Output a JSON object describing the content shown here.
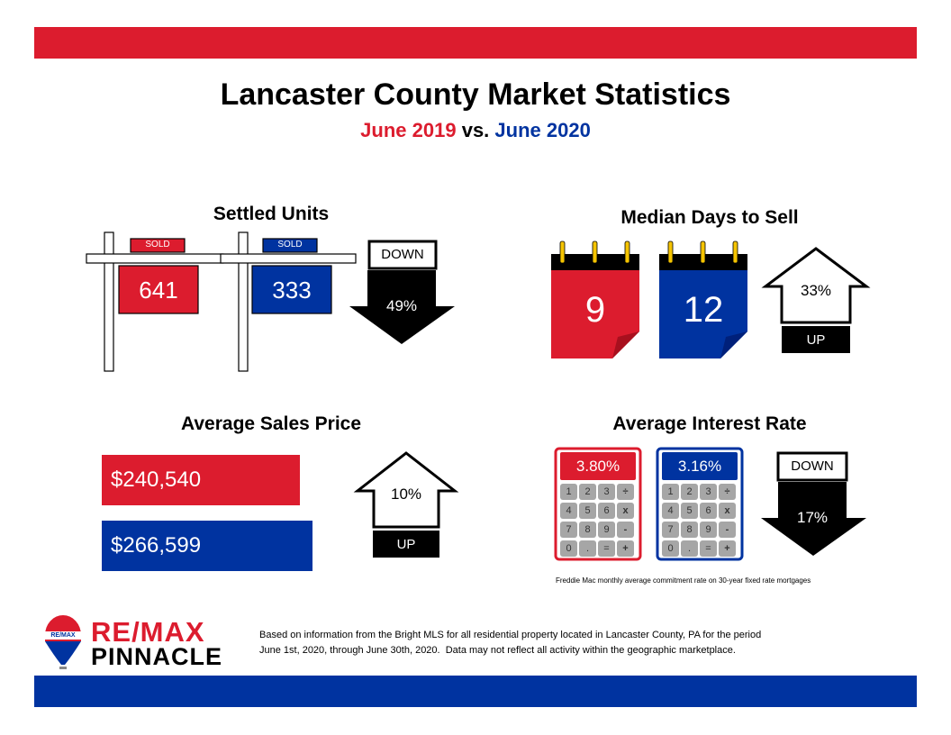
{
  "header": {
    "title": "Lancaster County Market Statistics",
    "year_a": "June 2019",
    "vs": "vs.",
    "year_b": "June 2020"
  },
  "colors": {
    "red": "#dc1c2e",
    "blue": "#0033a0",
    "black": "#000000",
    "yellow": "#f5c400"
  },
  "settled_units": {
    "heading": "Settled Units",
    "sign_label": "SOLD",
    "value_2019": "641",
    "value_2020": "333",
    "direction": "DOWN",
    "change": "49%"
  },
  "median_days": {
    "heading": "Median Days to Sell",
    "value_2019": "9",
    "value_2020": "12",
    "direction": "UP",
    "change": "33%"
  },
  "avg_price": {
    "heading": "Average Sales Price",
    "value_2019": "$240,540",
    "value_2020": "$266,599",
    "direction": "UP",
    "change": "10%"
  },
  "interest_rate": {
    "heading": "Average Interest Rate",
    "value_2019": "3.80%",
    "value_2020": "3.16%",
    "direction": "DOWN",
    "change": "17%",
    "keys": [
      "1",
      "2",
      "3",
      "÷",
      "4",
      "5",
      "6",
      "x",
      "7",
      "8",
      "9",
      "-",
      "0",
      ".",
      "=",
      "+"
    ],
    "footnote": "Freddie Mac monthly average commitment rate on 30-year fixed rate mortgages"
  },
  "footer": {
    "logo_top": "RE/MAX",
    "logo_bottom": "PINNACLE",
    "balloon_text": "RE/MAX",
    "disclaimer_line1": "Based on information from the Bright MLS for all residential property located in Lancaster County, PA for the period",
    "disclaimer_line2": "June 1st, 2020, through June 30th, 2020.  Data may not reflect all activity within the geographic marketplace."
  }
}
